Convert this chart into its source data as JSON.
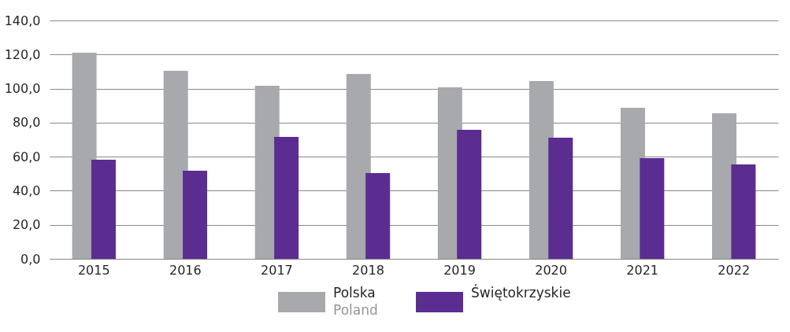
{
  "chart_data": {
    "type": "bar",
    "categories": [
      "2015",
      "2016",
      "2017",
      "2018",
      "2019",
      "2020",
      "2021",
      "2022"
    ],
    "series": [
      {
        "name": "Polska\nPoland",
        "color": "#a7a9ac",
        "values": [
          121.1,
          110.4,
          101.7,
          108.6,
          100.7,
          104.4,
          88.7,
          85.5
        ]
      },
      {
        "name": "Świętokrzyskie",
        "color": "#5b2d90",
        "values": [
          58.2,
          51.8,
          71.6,
          50.4,
          75.8,
          71.2,
          59.1,
          55.5
        ]
      }
    ],
    "ylim": [
      0,
      140
    ],
    "yticks": [
      {
        "value": 0,
        "label": "0,0"
      },
      {
        "value": 20,
        "label": "20,0"
      },
      {
        "value": 40,
        "label": "40,0"
      },
      {
        "value": 60,
        "label": "60,0"
      },
      {
        "value": 80,
        "label": "80,0"
      },
      {
        "value": 100,
        "label": "100,0"
      },
      {
        "value": 120,
        "label": "120,0"
      },
      {
        "value": 140,
        "label": "140,0"
      }
    ],
    "grid": "y",
    "legend": "bottom"
  }
}
